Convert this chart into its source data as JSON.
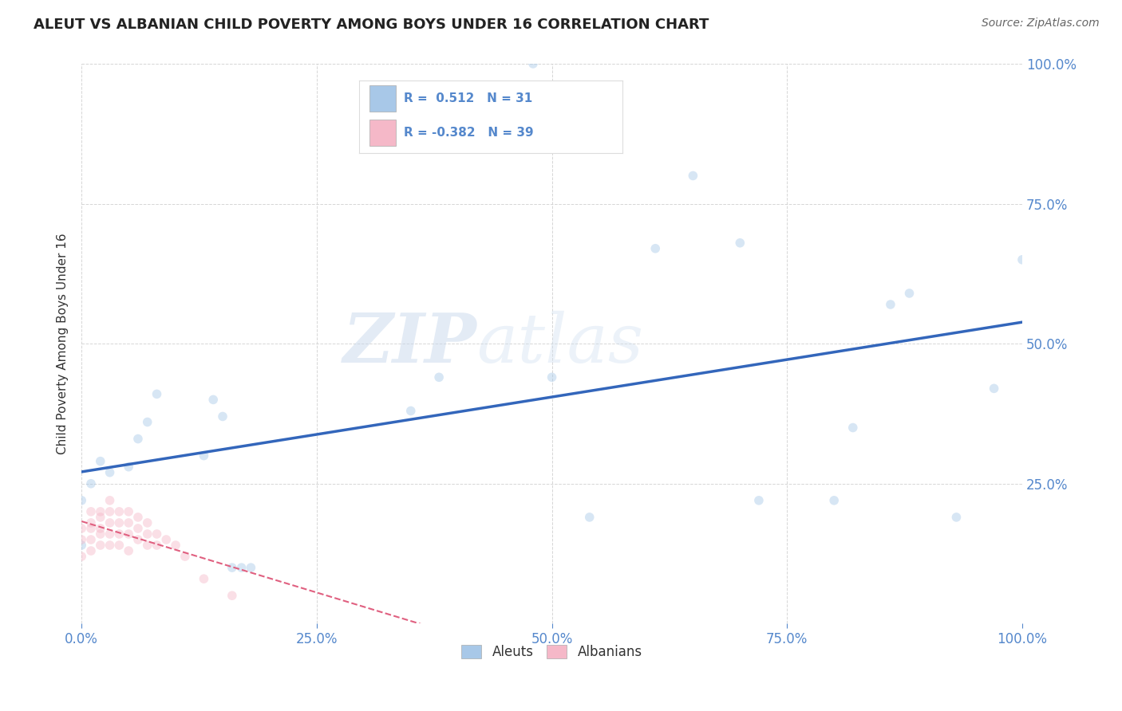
{
  "title": "ALEUT VS ALBANIAN CHILD POVERTY AMONG BOYS UNDER 16 CORRELATION CHART",
  "source": "Source: ZipAtlas.com",
  "ylabel": "Child Poverty Among Boys Under 16",
  "watermark_zip": "ZIP",
  "watermark_atlas": "atlas",
  "aleut_R": 0.512,
  "aleut_N": 31,
  "albanian_R": -0.382,
  "albanian_N": 39,
  "aleut_color": "#a8c8e8",
  "albanian_color": "#f5b8c8",
  "aleut_line_color": "#3366bb",
  "albanian_line_color": "#e06080",
  "aleuts_x": [
    0.48,
    0.07,
    0.08,
    0.02,
    0.05,
    0.03,
    0.01,
    0.0,
    0.0,
    0.06,
    0.13,
    0.35,
    0.38,
    0.5,
    0.54,
    0.61,
    0.65,
    0.7,
    0.72,
    0.8,
    0.82,
    0.86,
    0.88,
    0.93,
    0.97,
    1.0,
    0.14,
    0.15,
    0.16,
    0.17,
    0.18
  ],
  "aleuts_y": [
    1.0,
    0.36,
    0.41,
    0.29,
    0.28,
    0.27,
    0.25,
    0.14,
    0.22,
    0.33,
    0.3,
    0.38,
    0.44,
    0.44,
    0.19,
    0.67,
    0.8,
    0.68,
    0.22,
    0.22,
    0.35,
    0.57,
    0.59,
    0.19,
    0.42,
    0.65,
    0.4,
    0.37,
    0.1,
    0.1,
    0.1
  ],
  "albanians_x": [
    0.0,
    0.0,
    0.0,
    0.01,
    0.01,
    0.01,
    0.01,
    0.01,
    0.02,
    0.02,
    0.02,
    0.02,
    0.02,
    0.03,
    0.03,
    0.03,
    0.03,
    0.03,
    0.04,
    0.04,
    0.04,
    0.04,
    0.05,
    0.05,
    0.05,
    0.05,
    0.06,
    0.06,
    0.06,
    0.07,
    0.07,
    0.07,
    0.08,
    0.08,
    0.09,
    0.1,
    0.11,
    0.13,
    0.16
  ],
  "albanians_y": [
    0.17,
    0.15,
    0.12,
    0.2,
    0.18,
    0.17,
    0.15,
    0.13,
    0.2,
    0.19,
    0.17,
    0.16,
    0.14,
    0.22,
    0.2,
    0.18,
    0.16,
    0.14,
    0.2,
    0.18,
    0.16,
    0.14,
    0.2,
    0.18,
    0.16,
    0.13,
    0.19,
    0.17,
    0.15,
    0.18,
    0.16,
    0.14,
    0.16,
    0.14,
    0.15,
    0.14,
    0.12,
    0.08,
    0.05
  ],
  "xlim": [
    0.0,
    1.0
  ],
  "ylim": [
    0.0,
    1.0
  ],
  "xticks": [
    0.0,
    0.25,
    0.5,
    0.75,
    1.0
  ],
  "yticks": [
    0.0,
    0.25,
    0.5,
    0.75,
    1.0
  ],
  "xticklabels": [
    "0.0%",
    "25.0%",
    "50.0%",
    "75.0%",
    "100.0%"
  ],
  "yticklabels_right": [
    "",
    "25.0%",
    "50.0%",
    "75.0%",
    "100.0%"
  ],
  "background_color": "#ffffff",
  "grid_color": "#cccccc",
  "scatter_size": 70,
  "scatter_alpha": 0.45,
  "legend_label_aleut": "Aleuts",
  "legend_label_albanian": "Albanians",
  "tick_color": "#5588cc",
  "label_color": "#333333"
}
